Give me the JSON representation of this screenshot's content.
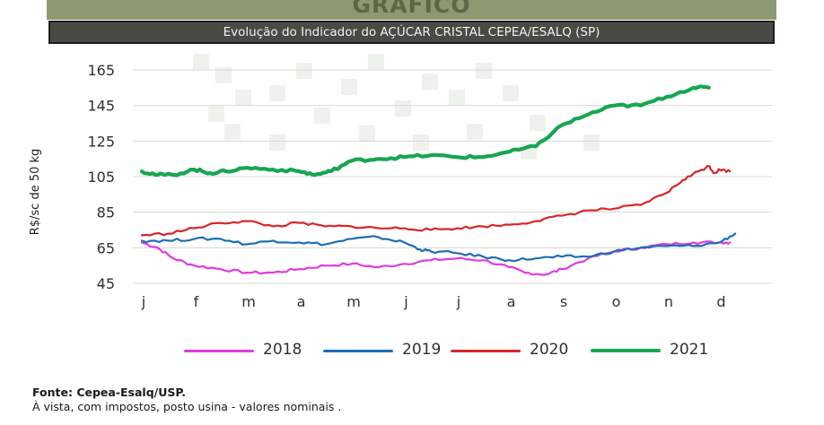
{
  "header": {
    "heading": "GRÁFICO",
    "title": "Evolução do Indicador do AÇÚCAR CRISTAL CEPEA/ESALQ (SP)"
  },
  "chart_data": {
    "type": "line",
    "title": "Evolução do Indicador do AÇÚCAR CRISTAL CEPEA/ESALQ (SP)",
    "xlabel": "",
    "ylabel": "R$/sc de 50 kg",
    "ylim": [
      45,
      165
    ],
    "yticks": [
      45,
      65,
      85,
      105,
      125,
      145,
      165
    ],
    "categories": [
      "j",
      "f",
      "m",
      "a",
      "m",
      "j",
      "j",
      "a",
      "s",
      "o",
      "n",
      "d"
    ],
    "grid": true,
    "legend_position": "bottom",
    "series": [
      {
        "name": "2018",
        "color": "#e03be0",
        "x": [
          0,
          0.3,
          0.6,
          1.0,
          1.5,
          2.0,
          2.5,
          3.0,
          3.5,
          4.0,
          4.5,
          5.0,
          5.5,
          6.0,
          6.5,
          7.0,
          7.3,
          7.7,
          8.0,
          8.5,
          9.0,
          9.5,
          10.0,
          10.5,
          11.0,
          11.2
        ],
        "values": [
          68,
          65,
          59,
          55,
          53,
          51,
          51,
          53,
          55,
          56,
          54,
          56,
          58,
          59,
          58,
          54,
          51,
          50,
          53,
          59,
          63,
          65,
          67,
          68,
          68,
          68
        ]
      },
      {
        "name": "2019",
        "color": "#1e6eb4",
        "x": [
          0,
          0.5,
          1.0,
          1.5,
          2.0,
          2.5,
          3.0,
          3.5,
          4.0,
          4.5,
          5.0,
          5.3,
          5.5,
          6.0,
          6.5,
          7.0,
          7.5,
          8.0,
          8.5,
          9.0,
          9.5,
          10.0,
          10.5,
          11.0,
          11.3
        ],
        "values": [
          69,
          69,
          70,
          70,
          67,
          69,
          68,
          67,
          70,
          71,
          68,
          64,
          63,
          62,
          60,
          58,
          59,
          60,
          60,
          63,
          65,
          66,
          66,
          68,
          73
        ]
      },
      {
        "name": "2020",
        "color": "#d9262a",
        "x": [
          0,
          0.5,
          1.0,
          1.5,
          2.0,
          2.5,
          3.0,
          3.5,
          4.0,
          4.5,
          5.0,
          5.5,
          6.0,
          6.5,
          7.0,
          7.5,
          8.0,
          8.5,
          9.0,
          9.5,
          10.0,
          10.3,
          10.6,
          10.8,
          10.9,
          11.0,
          11.2
        ],
        "values": [
          72,
          73,
          76,
          79,
          80,
          77,
          79,
          77,
          77,
          76,
          76,
          75,
          76,
          77,
          78,
          80,
          83,
          86,
          87,
          89,
          96,
          103,
          108,
          111,
          107,
          109,
          108
        ]
      },
      {
        "name": "2021",
        "color": "#18a650",
        "x": [
          0,
          0.3,
          0.6,
          1.0,
          1.3,
          1.6,
          2.0,
          2.5,
          3.0,
          3.3,
          3.6,
          4.0,
          4.5,
          5.0,
          5.5,
          6.0,
          6.5,
          7.0,
          7.5,
          8.0,
          8.5,
          9.0,
          9.5,
          10.0,
          10.5,
          10.8
        ],
        "values": [
          108,
          106,
          106,
          109,
          107,
          108,
          110,
          109,
          108,
          106,
          108,
          114,
          115,
          116,
          117,
          116,
          116,
          119,
          122,
          134,
          140,
          145,
          145,
          150,
          155,
          155
        ]
      }
    ]
  },
  "source": "Fonte: Cepea-Esalq/USP.",
  "note": "À vista, com impostos, posto usina - valores nominais ."
}
